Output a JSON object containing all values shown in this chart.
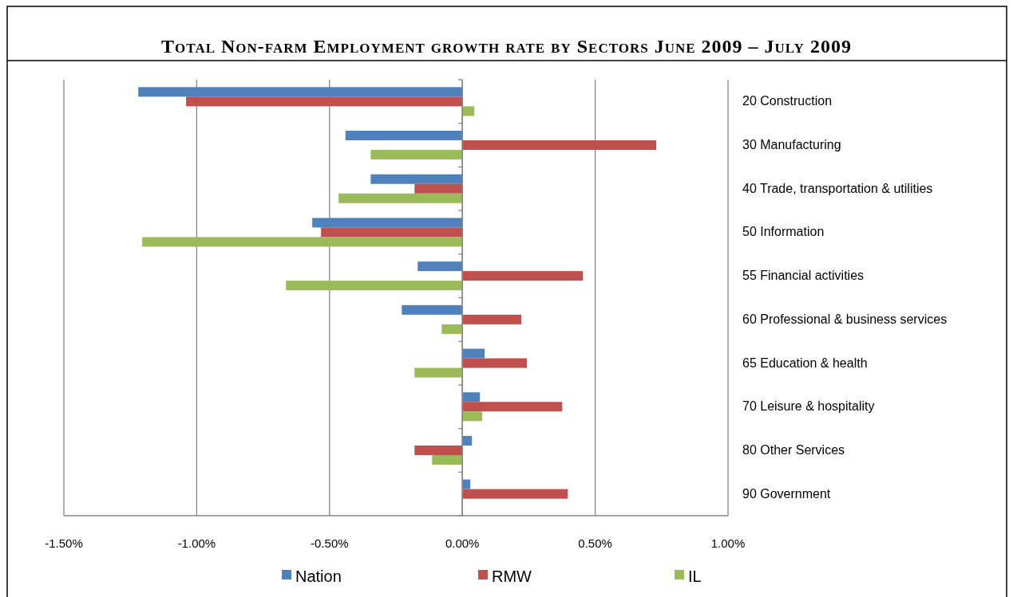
{
  "chart_data": {
    "type": "bar",
    "orientation": "horizontal",
    "title": "Total Non-farm Employment growth rate by Sectors June 2009 – July 2009",
    "categories": [
      "20 Construction",
      "30 Manufacturing",
      "40 Trade, transportation  & utilities",
      "50 Information",
      "55 Financial activities",
      "60 Professional & business services",
      "65 Education  & health",
      "70 Leisure & hospitality",
      "80 Other Services",
      "90 Government"
    ],
    "series": [
      {
        "name": "Nation",
        "color": "#4f81bd",
        "values": [
          -1.22,
          -0.44,
          -0.345,
          -0.565,
          -0.168,
          -0.228,
          0.084,
          0.066,
          0.036,
          0.03
        ]
      },
      {
        "name": "RMW",
        "color": "#c0504d",
        "values": [
          -1.04,
          0.73,
          -0.18,
          -0.532,
          0.454,
          0.222,
          0.243,
          0.376,
          -0.18,
          0.397
        ]
      },
      {
        "name": "IL",
        "color": "#9bbb59",
        "values": [
          0.045,
          -0.345,
          -0.466,
          -1.205,
          -0.664,
          -0.078,
          -0.18,
          0.075,
          -0.114,
          0
        ]
      }
    ],
    "xlim": [
      -1.5,
      1.0
    ],
    "xticks": [
      {
        "value": -1.5,
        "label": "-1.50%"
      },
      {
        "value": -1.0,
        "label": "-1.00%"
      },
      {
        "value": -0.5,
        "label": "-0.50%"
      },
      {
        "value": 0,
        "label": "0.00%"
      },
      {
        "value": 0.5,
        "label": "0.50%"
      },
      {
        "value": 1.0,
        "label": "1.00%"
      }
    ],
    "grid": "x",
    "legend": "bottom"
  }
}
